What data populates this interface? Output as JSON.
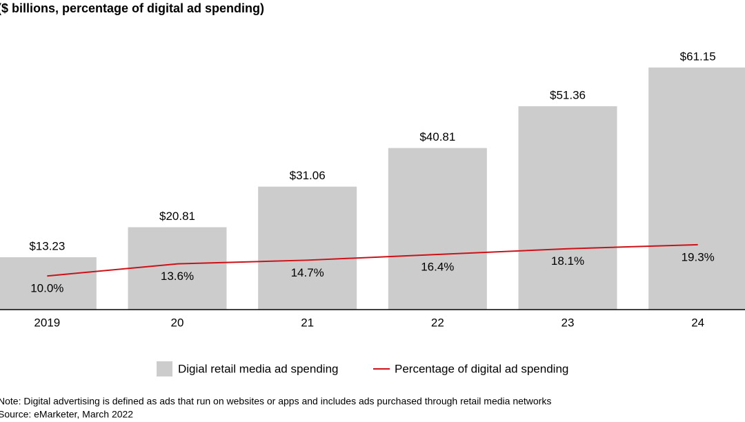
{
  "chart_data": {
    "type": "bar",
    "subtitle": "($ billions, percentage of digital ad spending)",
    "categories": [
      "2019",
      "20",
      "21",
      "22",
      "23",
      "24"
    ],
    "series": [
      {
        "name": "Digial retail media ad spending",
        "type": "bar",
        "color": "#cccccc",
        "values": [
          13.23,
          20.81,
          31.06,
          40.81,
          51.36,
          61.15
        ],
        "value_labels": [
          "$13.23",
          "$20.81",
          "$31.06",
          "$40.81",
          "$51.36",
          "$61.15"
        ]
      },
      {
        "name": "Percentage of digital ad spending",
        "type": "line",
        "axis": "y2",
        "color": "#cc1016",
        "values": [
          10.0,
          13.6,
          14.7,
          16.4,
          18.1,
          19.3
        ],
        "value_labels": [
          "10.0%",
          "13.6%",
          "14.7%",
          "16.4%",
          "18.1%",
          "19.3%"
        ]
      }
    ],
    "ylim": [
      0,
      62
    ],
    "y2lim": [
      0,
      73
    ],
    "note": "Note: Digital advertising is defined as ads that run on websites or apps and includes ads purchased through retail media networks",
    "source": "Source: eMarketer, March 2022"
  }
}
